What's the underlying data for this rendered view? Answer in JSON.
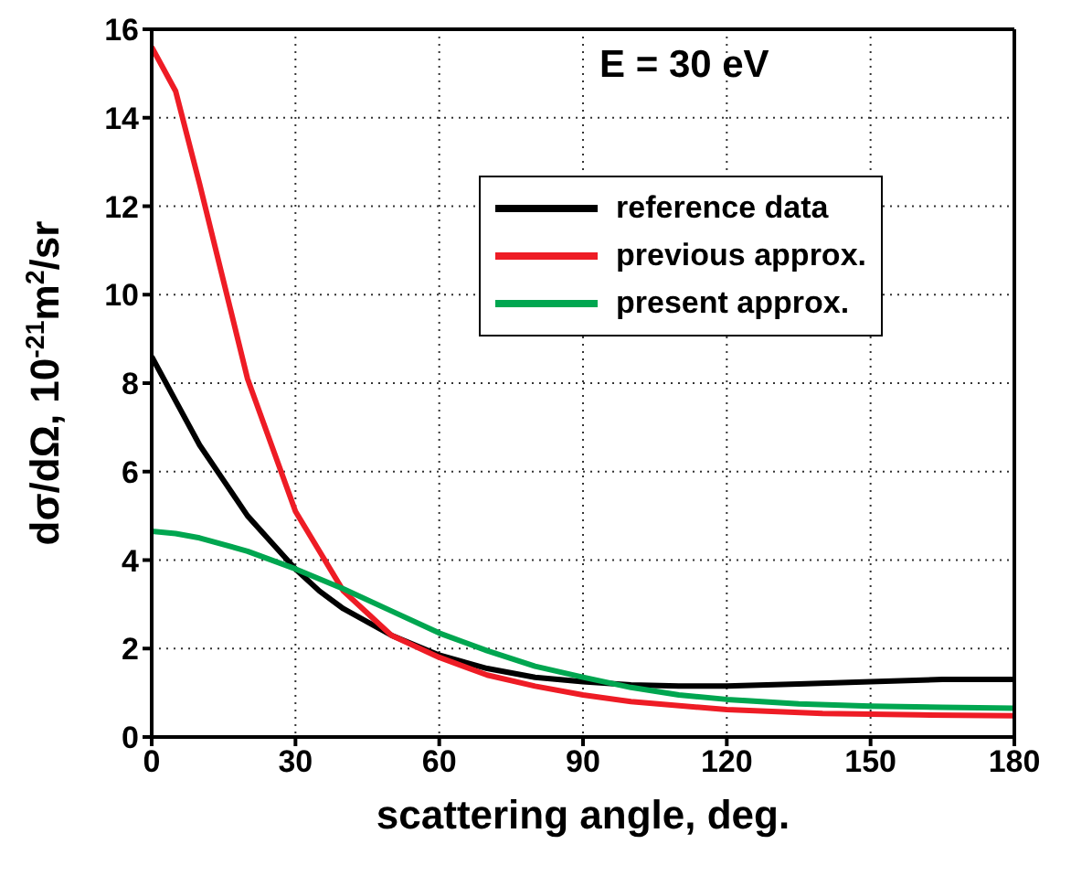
{
  "chart_data": {
    "type": "line",
    "xlabel": "scattering angle, deg.",
    "ylabel": "dσ/dΩ, 10$^{-21}$m$^{2}$/sr",
    "annotations": [
      "E = 30 eV"
    ],
    "series": [
      {
        "name": "reference data",
        "color": "#000000",
        "x": [
          0,
          5,
          10,
          15,
          20,
          25,
          30,
          35,
          40,
          50,
          60,
          70,
          80,
          90,
          100,
          110,
          120,
          135,
          150,
          165,
          180
        ],
        "values": [
          8.6,
          7.6,
          6.6,
          5.8,
          5.0,
          4.4,
          3.8,
          3.3,
          2.9,
          2.3,
          1.85,
          1.55,
          1.35,
          1.25,
          1.18,
          1.15,
          1.15,
          1.2,
          1.25,
          1.3,
          1.3
        ]
      },
      {
        "name": "previous approx.",
        "color": "#ee1c25",
        "x": [
          0,
          5,
          10,
          15,
          20,
          25,
          30,
          35,
          40,
          45,
          50,
          60,
          70,
          80,
          90,
          100,
          120,
          140,
          160,
          180
        ],
        "values": [
          15.6,
          14.6,
          12.5,
          10.3,
          8.1,
          6.6,
          5.1,
          4.2,
          3.3,
          2.8,
          2.3,
          1.8,
          1.4,
          1.15,
          0.95,
          0.8,
          0.62,
          0.53,
          0.5,
          0.48
        ]
      },
      {
        "name": "present approx.",
        "color": "#00a650",
        "x": [
          0,
          5,
          10,
          20,
          30,
          40,
          50,
          60,
          70,
          80,
          90,
          100,
          110,
          120,
          135,
          150,
          165,
          180
        ],
        "values": [
          4.65,
          4.6,
          4.5,
          4.2,
          3.8,
          3.35,
          2.85,
          2.35,
          1.95,
          1.6,
          1.35,
          1.12,
          0.95,
          0.85,
          0.75,
          0.7,
          0.67,
          0.65
        ]
      }
    ],
    "xlim": [
      0,
      180
    ],
    "xticks": [
      0,
      30,
      60,
      90,
      120,
      150,
      180
    ],
    "ylim": [
      0,
      16
    ],
    "yticks": [
      0,
      2,
      4,
      6,
      8,
      10,
      12,
      14,
      16
    ],
    "grid": true,
    "legend": "top right",
    "line_style": "solid",
    "marker": "none"
  }
}
